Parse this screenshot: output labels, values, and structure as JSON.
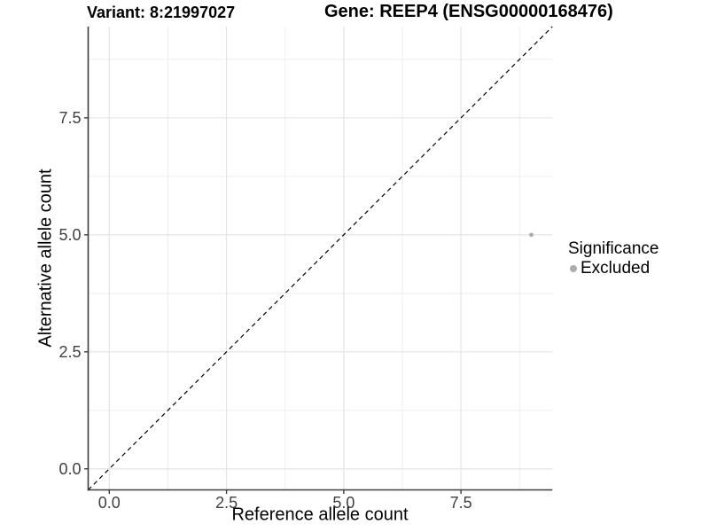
{
  "header": {
    "title_left": "Variant: 8:21997027",
    "title_right": "Gene: REEP4 (ENSG00000168476)"
  },
  "legend": {
    "title": "Significance",
    "items": [
      {
        "label": "Excluded",
        "color": "#ababab"
      }
    ]
  },
  "chart_data": {
    "type": "scatter",
    "xlabel": "Reference allele count",
    "ylabel": "Alternative allele count",
    "xlim": [
      -0.45,
      9.45
    ],
    "ylim": [
      -0.45,
      9.45
    ],
    "x_major_ticks": [
      0,
      2.5,
      5,
      7.5
    ],
    "x_tick_labels": [
      "0.0",
      "2.5",
      "5.0",
      "7.5"
    ],
    "y_major_ticks": [
      0,
      2.5,
      5,
      7.5
    ],
    "y_tick_labels": [
      "0.0",
      "2.5",
      "5.0",
      "7.5"
    ],
    "x_minor_ticks": [
      1.25,
      3.75,
      6.25,
      8.75
    ],
    "y_minor_ticks": [
      1.25,
      3.75,
      6.25,
      8.75
    ],
    "grid": "major+minor",
    "legend_position": "right",
    "series": [
      {
        "name": "Excluded",
        "color": "#ababab",
        "points": [
          {
            "x": 9,
            "y": 5
          }
        ]
      }
    ],
    "reference_line": {
      "kind": "identity y=x",
      "style": "dashed",
      "color": "#000000",
      "from": [
        -0.45,
        -0.45
      ],
      "to": [
        9.45,
        9.45
      ]
    },
    "colors": {
      "grid_major": "#e4e4e4",
      "grid_minor": "#eeeeee",
      "axis": "#3d3d3d",
      "tick_label": "#404040"
    }
  }
}
